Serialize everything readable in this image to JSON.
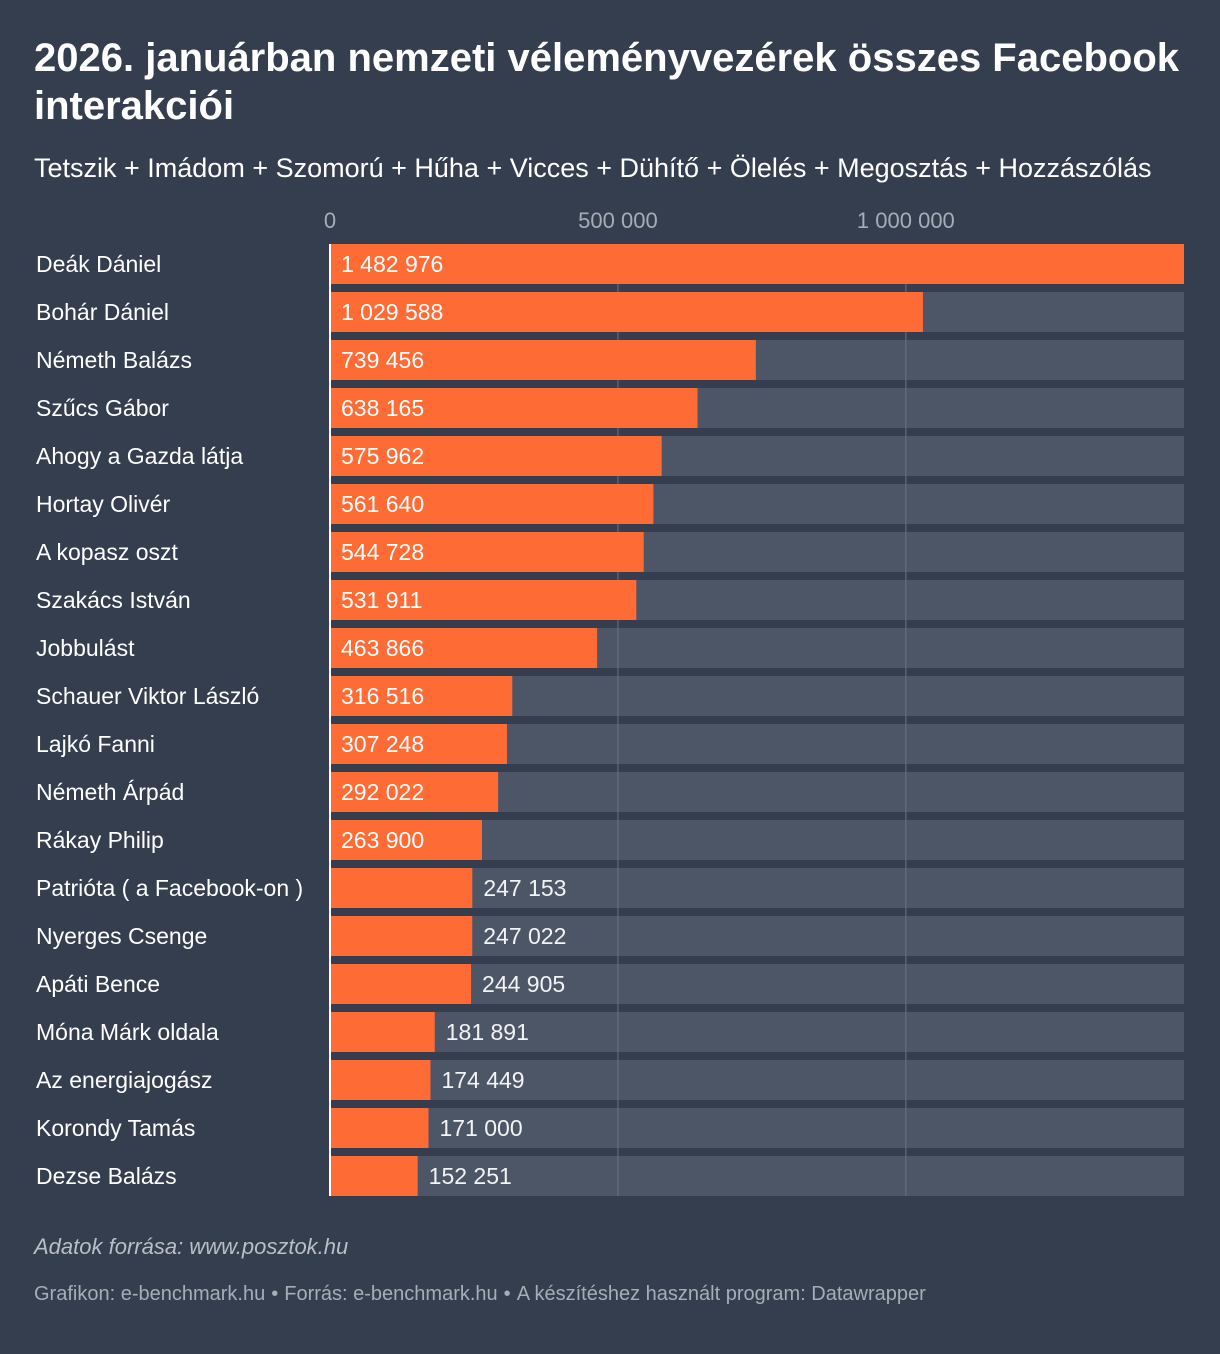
{
  "header": {
    "title": "2026. januárban nemzeti véleményvezérek összes Facebook interakciói",
    "subtitle": "Tetszik + Imádom + Szomorú + Hűha + Vicces + Dühítő + Ölelés + Megosztás + Hozzászólás"
  },
  "chart_data": {
    "type": "bar",
    "orientation": "horizontal",
    "title": "2026. januárban nemzeti véleményvezérek összes Facebook interakciói",
    "subtitle": "Tetszik + Imádom + Szomorú + Hűha + Vicces + Dühítő + Ölelés + Megosztás + Hozzászólás",
    "xlabel": "",
    "ylabel": "",
    "xlim": [
      0,
      1482976
    ],
    "ticks": [
      0,
      500000,
      1000000
    ],
    "tick_labels": [
      "0",
      "500 000",
      "1 000 000"
    ],
    "grid": true,
    "categories": [
      "Deák Dániel",
      "Bohár Dániel",
      "Németh Balázs",
      "Szűcs Gábor",
      "Ahogy a Gazda látja",
      "Hortay Olivér",
      "A kopasz oszt",
      "Szakács István",
      "Jobbulást",
      "Schauer Viktor László",
      "Lajkó Fanni",
      "Németh Árpád",
      "Rákay Philip",
      "Patrióta ( a Facebook-on )",
      "Nyerges Csenge",
      "Apáti Bence",
      "Móna Márk oldala",
      "Az energiajogász",
      "Korondy Tamás",
      "Dezse Balázs"
    ],
    "values": [
      1482976,
      1029588,
      739456,
      638165,
      575962,
      561640,
      544728,
      531911,
      463866,
      316516,
      307248,
      292022,
      263900,
      247153,
      247022,
      244905,
      181891,
      174449,
      171000,
      152251
    ],
    "value_labels": [
      "1 482 976",
      "1 029 588",
      "739 456",
      "638 165",
      "575 962",
      "561 640",
      "544 728",
      "531 911",
      "463 866",
      "316 516",
      "307 248",
      "292 022",
      "263 900",
      "247 153",
      "247 022",
      "244 905",
      "181 891",
      "174 449",
      "171 000",
      "152 251"
    ],
    "colors": {
      "bar": "#ff6b35",
      "track": "#4d5666",
      "background": "#343e4f",
      "grid": "#6a7280"
    }
  },
  "notes": "Adatok forrása: www.posztok.hu",
  "footer": {
    "chart_credit": "Grafikon: e-benchmark.hu",
    "source": "Forrás: e-benchmark.hu",
    "tool": "A készítéshez használt program: Datawrapper",
    "separator": "•"
  }
}
